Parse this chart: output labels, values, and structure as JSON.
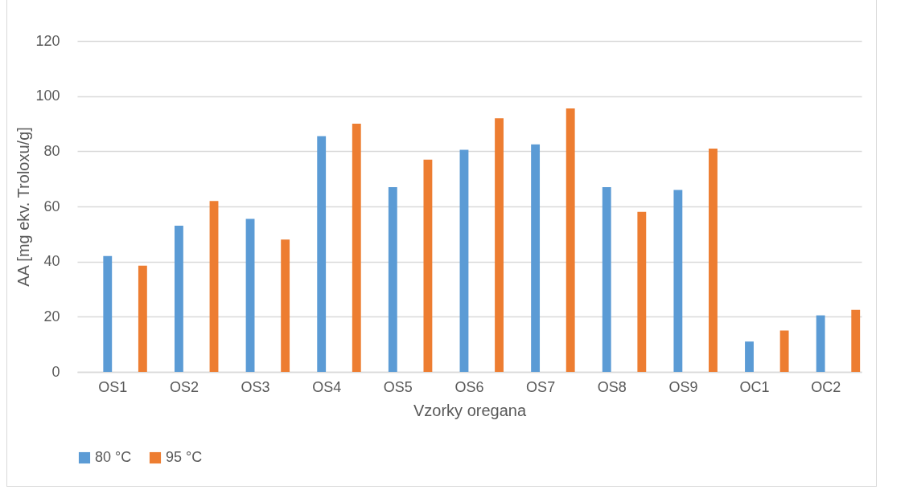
{
  "chart_data": {
    "type": "bar",
    "xlabel": "Vzorky oregana",
    "ylabel": "AA [mg ekv. Troloxu/g]",
    "categories": [
      "OS1",
      "OS2",
      "OS3",
      "OS4",
      "OS5",
      "OS6",
      "OS7",
      "OS8",
      "OS9",
      "OC1",
      "OC2"
    ],
    "series": [
      {
        "name": "80 °C",
        "color": "#5b9bd5",
        "values": [
          42,
          53,
          55.5,
          85.5,
          67,
          80.5,
          82.5,
          67,
          66,
          11,
          20.5
        ]
      },
      {
        "name": "95 °C",
        "color": "#ed7d31",
        "values": [
          38.5,
          62,
          48,
          90,
          77,
          92,
          95.5,
          58,
          81,
          15,
          22.5
        ]
      }
    ],
    "ylim": [
      0,
      120
    ],
    "yticks": [
      0,
      20,
      40,
      60,
      80,
      100,
      120
    ],
    "grid": "y",
    "legend": "bottom"
  }
}
